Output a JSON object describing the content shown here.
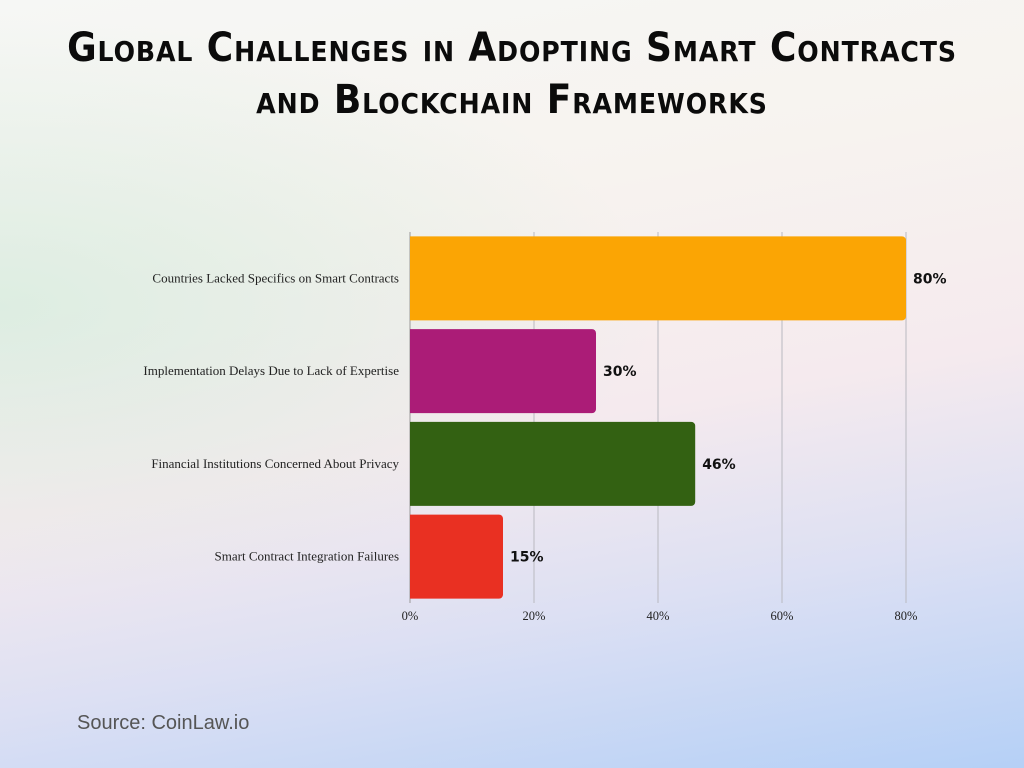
{
  "chart_data": {
    "type": "bar",
    "orientation": "horizontal",
    "title": "Global Challenges in Adopting Smart Contracts and Blockchain Frameworks",
    "categories": [
      "Countries Lacked Specifics on Smart Contracts",
      "Implementation Delays Due to Lack of Expertise",
      "Financial Institutions Concerned About Privacy",
      "Smart Contract Integration Failures"
    ],
    "values": [
      80,
      30,
      46,
      15
    ],
    "data_labels": [
      "80%",
      "30%",
      "46%",
      "15%"
    ],
    "colors": [
      "#fba504",
      "#ab1c77",
      "#336112",
      "#e93022"
    ],
    "xlim": [
      0,
      80
    ],
    "xticks": [
      0,
      20,
      40,
      60,
      80
    ],
    "xtick_labels": [
      "0%",
      "20%",
      "40%",
      "60%",
      "80%"
    ],
    "grid": "vertical",
    "legend": "none",
    "xlabel": "",
    "ylabel": ""
  },
  "source": "Source: CoinLaw.io"
}
